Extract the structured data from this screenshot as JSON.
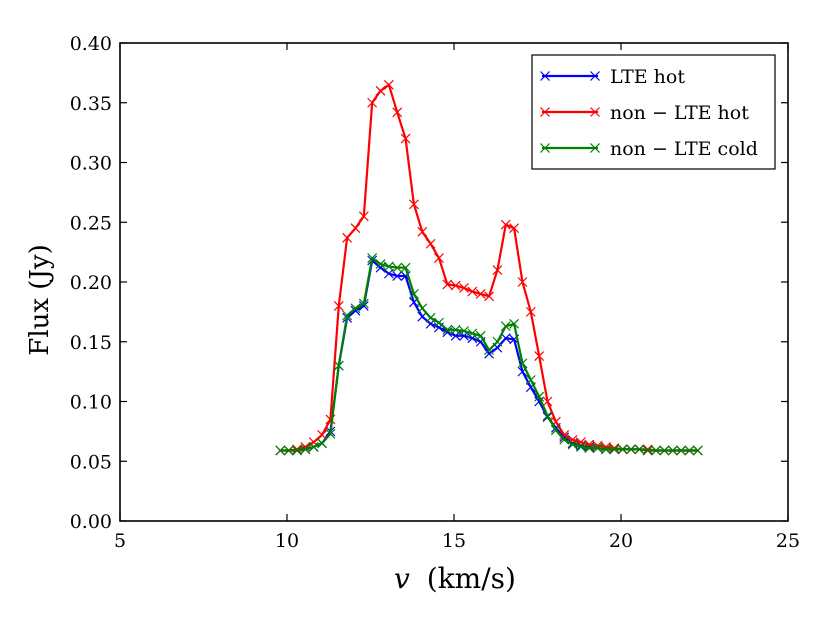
{
  "chart_data": {
    "type": "line",
    "title": "",
    "xlabel": "v (km/s)",
    "xlabel_var": "v",
    "xlabel_unit": "(km/s)",
    "ylabel": "Flux (Jy)",
    "xlim": [
      5,
      25
    ],
    "ylim": [
      0.0,
      0.4
    ],
    "xticks": [
      5,
      10,
      15,
      20,
      25
    ],
    "xtick_labels": [
      "5",
      "10",
      "15",
      "20",
      "25"
    ],
    "yticks": [
      0.0,
      0.05,
      0.1,
      0.15,
      0.2,
      0.25,
      0.3,
      0.35,
      0.4
    ],
    "ytick_labels": [
      "0.00",
      "0.05",
      "0.10",
      "0.15",
      "0.20",
      "0.25",
      "0.30",
      "0.35",
      "0.40"
    ],
    "grid": false,
    "legend_position": "top-right",
    "x": [
      9.8,
      10.05,
      10.3,
      10.55,
      10.8,
      11.05,
      11.3,
      11.55,
      11.8,
      12.05,
      12.3,
      12.55,
      12.8,
      13.05,
      13.3,
      13.55,
      13.8,
      14.05,
      14.3,
      14.55,
      14.8,
      15.05,
      15.3,
      15.55,
      15.8,
      16.05,
      16.3,
      16.55,
      16.8,
      17.05,
      17.3,
      17.55,
      17.8,
      18.05,
      18.3,
      18.55,
      18.8,
      19.05,
      19.3,
      19.55,
      19.8,
      20.05,
      20.3,
      20.55,
      20.8,
      21.05,
      21.3,
      21.55,
      21.8,
      22.05,
      22.3
    ],
    "series": [
      {
        "name": "LTE hot",
        "color": "#0000ff",
        "marker": "x",
        "values": [
          0.059,
          0.059,
          0.059,
          0.06,
          0.062,
          0.065,
          0.075,
          0.13,
          0.17,
          0.176,
          0.18,
          0.218,
          0.212,
          0.207,
          0.205,
          0.205,
          0.183,
          0.171,
          0.165,
          0.162,
          0.158,
          0.155,
          0.155,
          0.153,
          0.15,
          0.14,
          0.145,
          0.153,
          0.152,
          0.125,
          0.112,
          0.1,
          0.087,
          0.078,
          0.07,
          0.065,
          0.063,
          0.062,
          0.061,
          0.06,
          0.06,
          0.06,
          0.06,
          0.06,
          0.059,
          0.059,
          0.059,
          0.059,
          0.059,
          0.059,
          0.059
        ]
      },
      {
        "name": "non − LTE hot",
        "color": "#ff0000",
        "marker": "x",
        "values": [
          0.059,
          0.059,
          0.06,
          0.062,
          0.066,
          0.072,
          0.085,
          0.18,
          0.237,
          0.245,
          0.255,
          0.35,
          0.36,
          0.365,
          0.342,
          0.32,
          0.265,
          0.242,
          0.232,
          0.22,
          0.198,
          0.197,
          0.195,
          0.192,
          0.19,
          0.188,
          0.21,
          0.248,
          0.245,
          0.2,
          0.175,
          0.138,
          0.1,
          0.083,
          0.072,
          0.068,
          0.066,
          0.064,
          0.063,
          0.062,
          0.061,
          0.06,
          0.06,
          0.06,
          0.06,
          0.059,
          0.059,
          0.059,
          0.059,
          0.059,
          0.059
        ]
      },
      {
        "name": "non − LTE cold",
        "color": "#008000",
        "marker": "x",
        "values": [
          0.059,
          0.059,
          0.059,
          0.06,
          0.062,
          0.065,
          0.073,
          0.13,
          0.172,
          0.178,
          0.182,
          0.22,
          0.215,
          0.213,
          0.212,
          0.212,
          0.19,
          0.178,
          0.17,
          0.166,
          0.16,
          0.16,
          0.159,
          0.157,
          0.155,
          0.143,
          0.15,
          0.163,
          0.165,
          0.132,
          0.118,
          0.104,
          0.088,
          0.076,
          0.068,
          0.064,
          0.062,
          0.061,
          0.061,
          0.06,
          0.06,
          0.06,
          0.06,
          0.06,
          0.059,
          0.059,
          0.059,
          0.059,
          0.059,
          0.059,
          0.059
        ]
      }
    ]
  }
}
